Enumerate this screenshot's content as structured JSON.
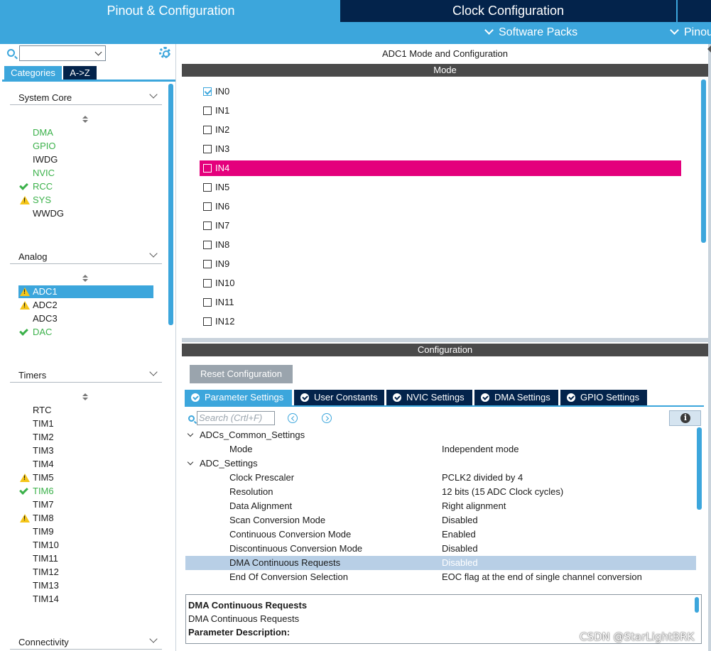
{
  "header": {
    "tabs": [
      {
        "label": "Pinout & Configuration",
        "active": true
      },
      {
        "label": "Clock Configuration",
        "active": false
      }
    ],
    "subbar": [
      {
        "label": "Software Packs"
      },
      {
        "label": "Pinou"
      }
    ]
  },
  "left": {
    "search": {
      "value": ""
    },
    "view_tabs": [
      "Categories",
      "A->Z"
    ],
    "groups": [
      {
        "title": "System Core",
        "items": [
          {
            "label": "DMA",
            "status": "green"
          },
          {
            "label": "GPIO",
            "status": "green"
          },
          {
            "label": "IWDG",
            "status": "none"
          },
          {
            "label": "NVIC",
            "status": "green"
          },
          {
            "label": "RCC",
            "status": "ok"
          },
          {
            "label": "SYS",
            "status": "warning"
          },
          {
            "label": "WWDG",
            "status": "none"
          }
        ]
      },
      {
        "title": "Analog",
        "items": [
          {
            "label": "ADC1",
            "status": "warning",
            "selected": true
          },
          {
            "label": "ADC2",
            "status": "warning"
          },
          {
            "label": "ADC3",
            "status": "none"
          },
          {
            "label": "DAC",
            "status": "ok"
          }
        ]
      },
      {
        "title": "Timers",
        "items": [
          {
            "label": "RTC",
            "status": "none"
          },
          {
            "label": "TIM1",
            "status": "none"
          },
          {
            "label": "TIM2",
            "status": "none"
          },
          {
            "label": "TIM3",
            "status": "none"
          },
          {
            "label": "TIM4",
            "status": "none"
          },
          {
            "label": "TIM5",
            "status": "warning"
          },
          {
            "label": "TIM6",
            "status": "ok"
          },
          {
            "label": "TIM7",
            "status": "none"
          },
          {
            "label": "TIM8",
            "status": "warning"
          },
          {
            "label": "TIM9",
            "status": "none"
          },
          {
            "label": "TIM10",
            "status": "none"
          },
          {
            "label": "TIM11",
            "status": "none"
          },
          {
            "label": "TIM12",
            "status": "none"
          },
          {
            "label": "TIM13",
            "status": "none"
          },
          {
            "label": "TIM14",
            "status": "none"
          }
        ]
      },
      {
        "title": "Connectivity",
        "items": []
      }
    ]
  },
  "mode_panel": {
    "title": "ADC1 Mode and Configuration",
    "section": "Mode",
    "inputs": [
      {
        "label": "IN0",
        "checked": true
      },
      {
        "label": "IN1",
        "checked": false
      },
      {
        "label": "IN2",
        "checked": false
      },
      {
        "label": "IN3",
        "checked": false
      },
      {
        "label": "IN4",
        "checked": false,
        "highlighted": true
      },
      {
        "label": "IN5",
        "checked": false
      },
      {
        "label": "IN6",
        "checked": false
      },
      {
        "label": "IN7",
        "checked": false
      },
      {
        "label": "IN8",
        "checked": false
      },
      {
        "label": "IN9",
        "checked": false
      },
      {
        "label": "IN10",
        "checked": false
      },
      {
        "label": "IN11",
        "checked": false
      },
      {
        "label": "IN12",
        "checked": false
      }
    ]
  },
  "config_panel": {
    "section": "Configuration",
    "reset_label": "Reset Configuration",
    "tabs": [
      {
        "label": "Parameter Settings",
        "active": true
      },
      {
        "label": "User Constants",
        "active": false
      },
      {
        "label": "NVIC Settings",
        "active": false
      },
      {
        "label": "DMA Settings",
        "active": false
      },
      {
        "label": "GPIO Settings",
        "active": false
      }
    ],
    "search_placeholder": "Search (Crtl+F)",
    "info_icon": "info-icon",
    "params": [
      {
        "key": "ADCs_Common_Settings",
        "value": "",
        "group": true
      },
      {
        "key": "Mode",
        "value": "Independent mode"
      },
      {
        "key": "ADC_Settings",
        "value": "",
        "group": true
      },
      {
        "key": "Clock Prescaler",
        "value": "PCLK2 divided by 4"
      },
      {
        "key": "Resolution",
        "value": "12 bits (15 ADC Clock cycles)"
      },
      {
        "key": "Data Alignment",
        "value": "Right alignment"
      },
      {
        "key": "Scan Conversion Mode",
        "value": "Disabled"
      },
      {
        "key": "Continuous Conversion Mode",
        "value": "Enabled"
      },
      {
        "key": "Discontinuous Conversion Mode",
        "value": "Disabled"
      },
      {
        "key": "DMA Continuous Requests",
        "value": "Disabled",
        "selected": true
      },
      {
        "key": "End Of Conversion Selection",
        "value": "EOC flag at the end of single channel conversion"
      }
    ],
    "description": {
      "title": "DMA Continuous Requests",
      "name": "DMA Continuous Requests",
      "label": "Parameter Description:"
    }
  },
  "watermark": "CSDN @StarLightBRK",
  "colors": {
    "accent": "#3ca6dc",
    "navy": "#03234b",
    "highlight": "#e4007c",
    "ok": "#3bb14a",
    "warning": "#f5c518"
  }
}
